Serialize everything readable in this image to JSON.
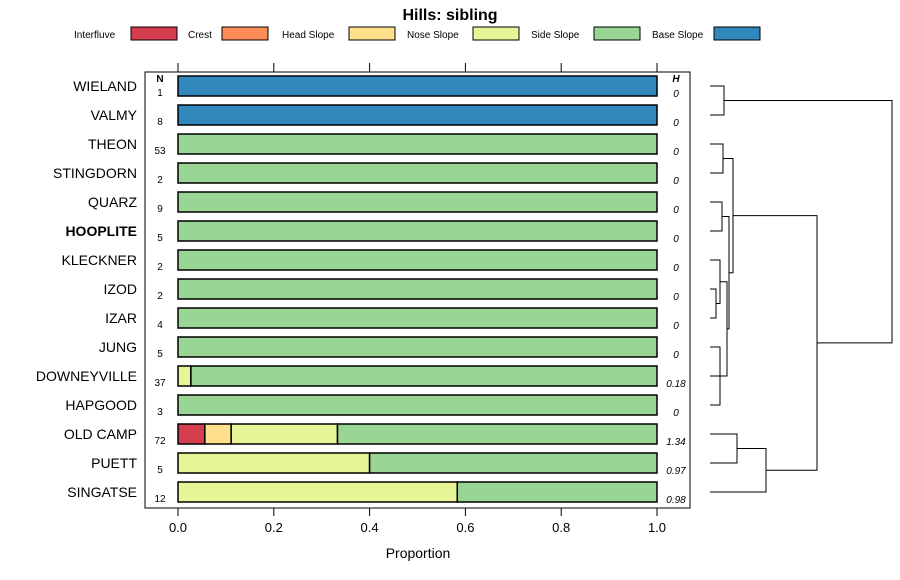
{
  "chart_data": {
    "type": "bar",
    "orientation": "horizontal",
    "stacked": true,
    "title": "Hills: sibling",
    "xlabel": "Proportion",
    "ylabel": "",
    "xlim": [
      0,
      1
    ],
    "x_ticks": [
      0.0,
      0.2,
      0.4,
      0.6,
      0.8,
      1.0
    ],
    "x_tick_labels": [
      "0.0",
      "0.2",
      "0.4",
      "0.6",
      "0.8",
      "1.0"
    ],
    "n_header": "N",
    "h_header": "H",
    "legend": [
      {
        "name": "Interfluve",
        "color": "#D53E4F"
      },
      {
        "name": "Crest",
        "color": "#FC8D59"
      },
      {
        "name": "Head Slope",
        "color": "#FEE08B"
      },
      {
        "name": "Nose Slope",
        "color": "#E6F598"
      },
      {
        "name": "Side Slope",
        "color": "#99D594"
      },
      {
        "name": "Base Slope",
        "color": "#3288BD"
      }
    ],
    "categories": [
      "WIELAND",
      "VALMY",
      "THEON",
      "STINGDORN",
      "QUARZ",
      "HOOPLITE",
      "KLECKNER",
      "IZOD",
      "IZAR",
      "JUNG",
      "DOWNEYVILLE",
      "HAPGOOD",
      "OLD CAMP",
      "PUETT",
      "SINGATSE"
    ],
    "highlight": "HOOPLITE",
    "n": [
      "1",
      "8",
      "53",
      "2",
      "9",
      "5",
      "2",
      "2",
      "4",
      "5",
      "37",
      "3",
      "72",
      "5",
      "12"
    ],
    "h": [
      "0",
      "0",
      "0",
      "0",
      "0",
      "0",
      "0",
      "0",
      "0",
      "0",
      "0.18",
      "0",
      "1.34",
      "0.97",
      "0.98"
    ],
    "series": [
      {
        "name": "Interfluve",
        "values": [
          0,
          0,
          0,
          0,
          0,
          0,
          0,
          0,
          0,
          0,
          0,
          0,
          0.056,
          0,
          0
        ]
      },
      {
        "name": "Crest",
        "values": [
          0,
          0,
          0,
          0,
          0,
          0,
          0,
          0,
          0,
          0,
          0,
          0,
          0,
          0,
          0
        ]
      },
      {
        "name": "Head Slope",
        "values": [
          0,
          0,
          0,
          0,
          0,
          0,
          0,
          0,
          0,
          0,
          0,
          0,
          0.055,
          0,
          0
        ]
      },
      {
        "name": "Nose Slope",
        "values": [
          0,
          0,
          0,
          0,
          0,
          0,
          0,
          0,
          0,
          0,
          0.027,
          0,
          0.222,
          0.4,
          0.583
        ]
      },
      {
        "name": "Side Slope",
        "values": [
          0,
          0,
          1,
          1,
          1,
          1,
          1,
          1,
          1,
          1,
          0.973,
          1,
          0.667,
          0.6,
          0.417
        ]
      },
      {
        "name": "Base Slope",
        "values": [
          1,
          1,
          0,
          0,
          0,
          0,
          0,
          0,
          0,
          0,
          0,
          0,
          0,
          0,
          0
        ]
      }
    ],
    "dendrogram": {
      "position": "right",
      "merges": [
        {
          "left": "WIELAND",
          "right": "VALMY",
          "height": 0.05
        },
        {
          "left": "THEON",
          "right": "STINGDORN",
          "height": 0.05
        },
        {
          "left": "QUARZ",
          "right": "HOOPLITE",
          "height": 0.05
        },
        {
          "left": "IZOD",
          "right": "IZAR",
          "height": 0.03
        },
        {
          "left": "KLECKNER",
          "right": "IZOD+IZAR",
          "height": 0.05
        },
        {
          "left": "JUNG",
          "right": "HAPGOOD",
          "height": 0.05
        },
        {
          "left": "DOWNEYVILLE",
          "right": "JUNG+HAPGOOD",
          "height": 0.07
        },
        {
          "left": "KLECKNER+IZOD+IZAR",
          "right": "DOWNEYVILLE+JUNG+HAPGOOD",
          "height": 0.08
        },
        {
          "left": "QUARZ+HOOPLITE",
          "right": "KLECKNER..HAPGOOD",
          "height": 0.1
        },
        {
          "left": "THEON+STINGDORN",
          "right": "QUARZ..HAPGOOD",
          "height": 0.12
        },
        {
          "left": "OLD CAMP",
          "right": "PUETT",
          "height": 0.15
        },
        {
          "left": "OLD CAMP+PUETT",
          "right": "SINGATSE",
          "height": 0.32
        },
        {
          "left": "THEON..HAPGOOD",
          "right": "OLD CAMP+PUETT+SINGATSE",
          "height": 0.55
        },
        {
          "left": "WIELAND+VALMY",
          "right": "REST",
          "height": 1.0
        }
      ]
    }
  }
}
